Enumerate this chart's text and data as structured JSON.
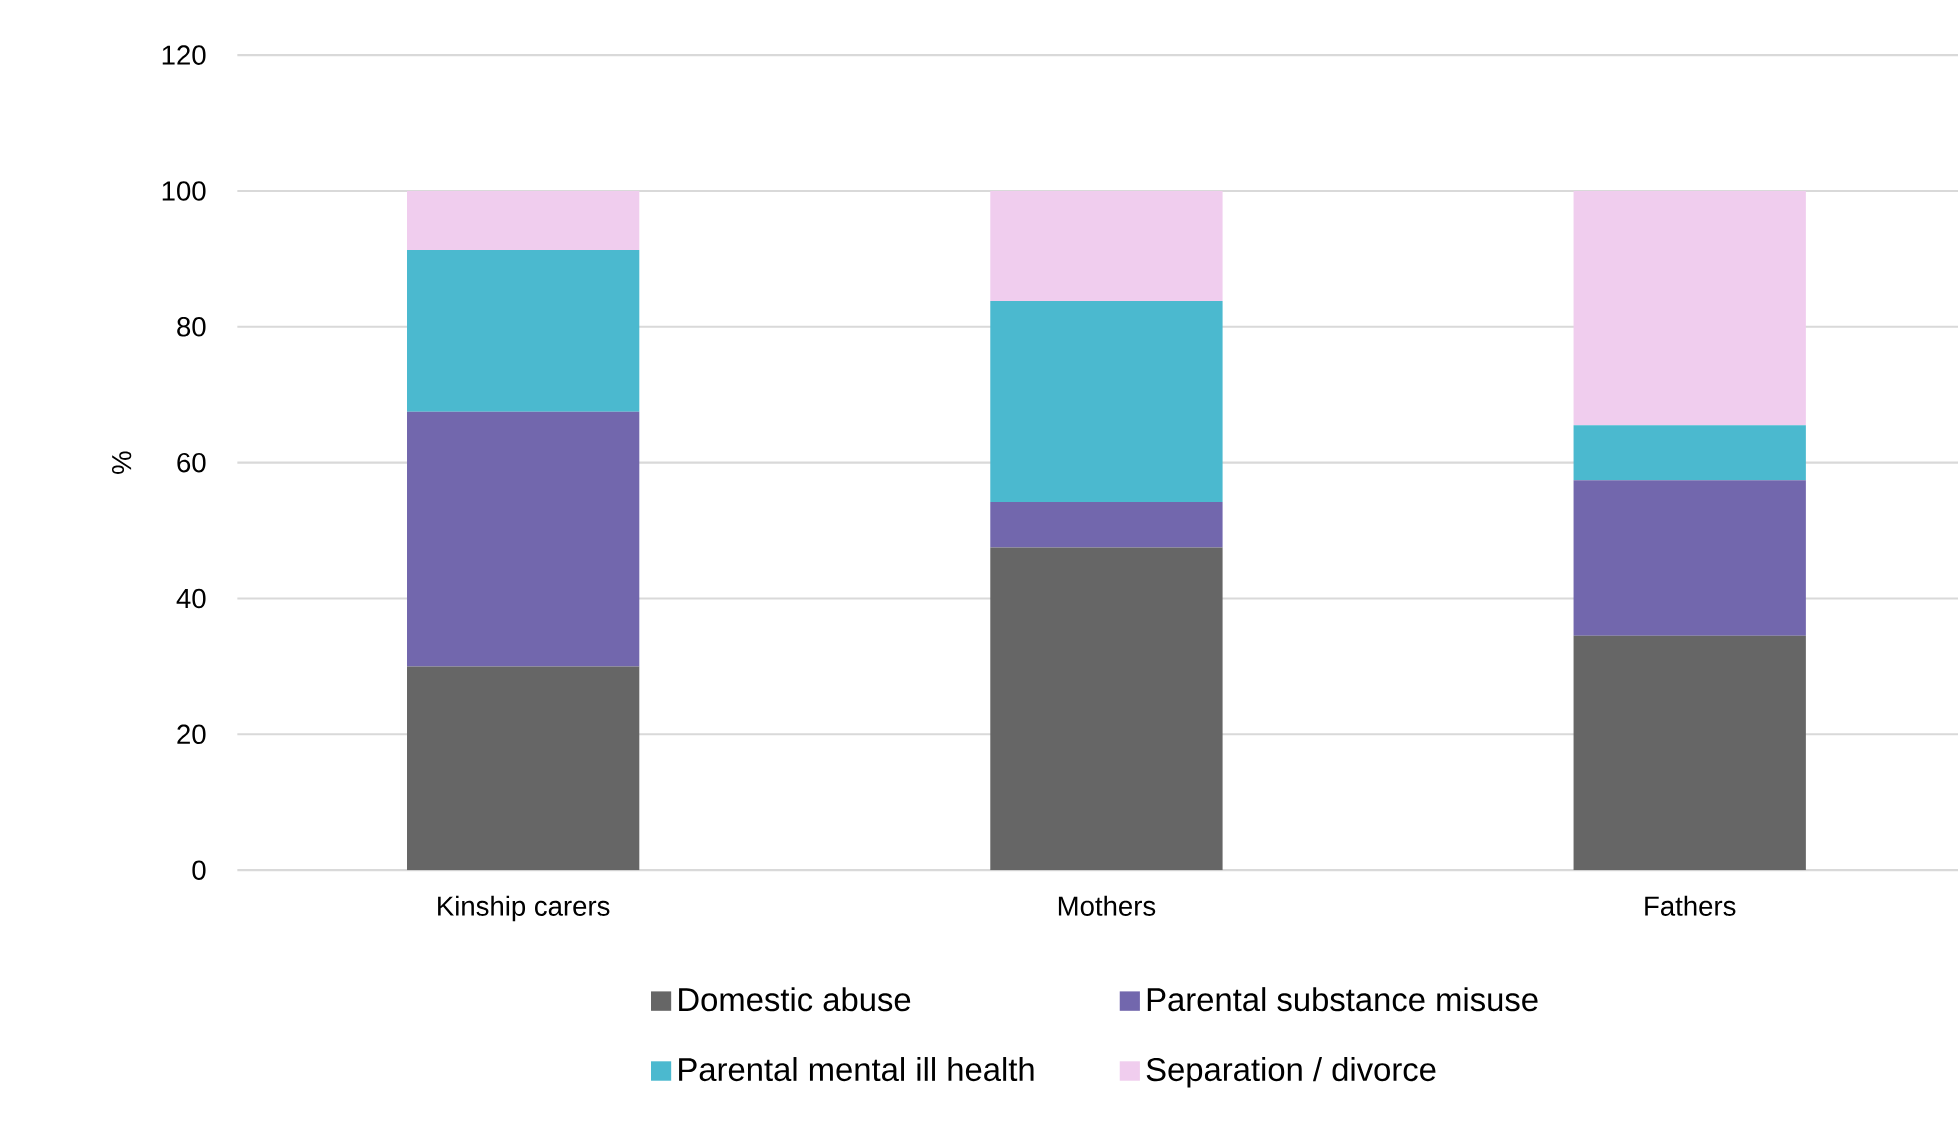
{
  "chart_data": {
    "type": "bar",
    "stacked": true,
    "ylabel": "%",
    "categories": [
      "Kinship carers",
      "Mothers",
      "Fathers"
    ],
    "series": [
      {
        "name": "Domestic abuse",
        "color": "#666666",
        "values": [
          30,
          47.5,
          34.5
        ]
      },
      {
        "name": "Parental substance misuse",
        "color": "#7267ad",
        "values": [
          37.5,
          6.7,
          22.9
        ]
      },
      {
        "name": "Parental mental ill health",
        "color": "#4bb9cf",
        "values": [
          23.8,
          29.6,
          8.1
        ]
      },
      {
        "name": "Separation / divorce",
        "color": "#f0cdee",
        "values": [
          8.7,
          16.2,
          34.5
        ]
      }
    ],
    "ylim": [
      0,
      120
    ],
    "yticks": [
      0,
      20,
      40,
      60,
      80,
      100,
      120
    ],
    "grid": "y",
    "legend": "bottom"
  }
}
